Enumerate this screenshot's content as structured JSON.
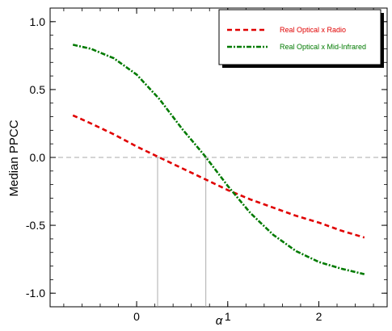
{
  "chart_data": {
    "type": "line",
    "xlabel": "α",
    "ylabel": "Median PPCC",
    "xlim": [
      -0.95,
      2.75
    ],
    "ylim": [
      -1.1,
      1.1
    ],
    "xticks": [
      0,
      1,
      2
    ],
    "xtick_labels": [
      "0",
      "1",
      "2"
    ],
    "yticks": [
      -1.0,
      -0.5,
      0.0,
      0.5,
      1.0
    ],
    "ytick_labels": [
      "-1.0",
      "-0.5",
      "0.0",
      "0.5",
      "1.0"
    ],
    "zero_line": 0.0,
    "markers": [
      {
        "x": 0.23,
        "y": 0.0
      },
      {
        "x": 0.76,
        "y": 0.0
      }
    ],
    "legend_position": "top-right",
    "series": [
      {
        "name": "Real Optical x Radio",
        "color": "#e00000",
        "style": "dashed",
        "x": [
          -0.7,
          -0.5,
          -0.25,
          0.0,
          0.25,
          0.5,
          0.75,
          1.0,
          1.25,
          1.5,
          1.75,
          2.0,
          2.25,
          2.5
        ],
        "y": [
          0.31,
          0.25,
          0.17,
          0.08,
          0.0,
          -0.08,
          -0.16,
          -0.24,
          -0.31,
          -0.37,
          -0.43,
          -0.48,
          -0.54,
          -0.59
        ]
      },
      {
        "name": "Real Optical x Mid-Infrared",
        "color": "#007a00",
        "style": "dash-dot",
        "x": [
          -0.7,
          -0.5,
          -0.25,
          0.0,
          0.25,
          0.5,
          0.75,
          1.0,
          1.25,
          1.5,
          1.75,
          2.0,
          2.25,
          2.5
        ],
        "y": [
          0.83,
          0.8,
          0.73,
          0.61,
          0.43,
          0.21,
          0.01,
          -0.21,
          -0.41,
          -0.57,
          -0.69,
          -0.77,
          -0.82,
          -0.86
        ]
      }
    ]
  }
}
